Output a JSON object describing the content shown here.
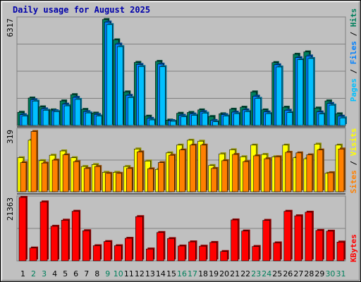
{
  "window": {
    "title": "Daily usage for August 2025"
  },
  "colors": {
    "hits": "#00805c",
    "files": "#0080ff",
    "pages": "#00c0ff",
    "visits": "#ffff00",
    "sites": "#ff8000",
    "kbytes": "#ff0000",
    "weekday": "#000000",
    "weekend": "#00805c",
    "background": "#c0c0c0"
  },
  "chart_data": [
    {
      "type": "bar",
      "title": "Daily usage for August 2025",
      "ylabel": "6317",
      "right_labels": [
        "Pages",
        "Files",
        "Hits"
      ],
      "right_separator": "/",
      "ylim": [
        0,
        6317
      ],
      "categories": [
        "1",
        "2",
        "3",
        "4",
        "5",
        "6",
        "7",
        "8",
        "9",
        "10",
        "11",
        "12",
        "13",
        "14",
        "15",
        "16",
        "17",
        "18",
        "19",
        "20",
        "21",
        "22",
        "23",
        "24",
        "25",
        "26",
        "27",
        "28",
        "29",
        "30",
        "31"
      ],
      "weekend": [
        false,
        true,
        true,
        false,
        false,
        false,
        false,
        false,
        true,
        true,
        false,
        false,
        false,
        false,
        false,
        true,
        true,
        false,
        false,
        false,
        false,
        false,
        true,
        true,
        false,
        false,
        false,
        false,
        false,
        true,
        true
      ],
      "series": [
        {
          "name": "Hits",
          "values": [
            780,
            1620,
            1100,
            920,
            1450,
            1820,
            950,
            730,
            6250,
            5050,
            1980,
            3720,
            550,
            3780,
            320,
            720,
            770,
            920,
            530,
            690,
            960,
            1080,
            1980,
            920,
            3710,
            1080,
            4200,
            4340,
            1030,
            1450,
            690
          ]
        },
        {
          "name": "Files",
          "values": [
            640,
            1520,
            980,
            870,
            1260,
            1660,
            820,
            650,
            6100,
            4800,
            1780,
            3600,
            420,
            3620,
            290,
            600,
            680,
            820,
            300,
            640,
            790,
            920,
            1730,
            800,
            3580,
            900,
            4000,
            4100,
            800,
            1300,
            550
          ]
        },
        {
          "name": "Pages",
          "values": [
            560,
            1440,
            900,
            820,
            1160,
            1540,
            740,
            560,
            5950,
            4650,
            1650,
            3480,
            330,
            3470,
            250,
            520,
            600,
            730,
            220,
            560,
            700,
            820,
            1600,
            700,
            3450,
            760,
            3880,
            3950,
            680,
            1200,
            450
          ]
        }
      ]
    },
    {
      "type": "bar",
      "ylabel": "319",
      "right_labels": [
        "Sites",
        "Visits"
      ],
      "right_separator": "/",
      "ylim": [
        0,
        319
      ],
      "categories": [
        "1",
        "2",
        "3",
        "4",
        "5",
        "6",
        "7",
        "8",
        "9",
        "10",
        "11",
        "12",
        "13",
        "14",
        "15",
        "16",
        "17",
        "18",
        "19",
        "20",
        "21",
        "22",
        "23",
        "24",
        "25",
        "26",
        "27",
        "28",
        "29",
        "30",
        "31"
      ],
      "series": [
        {
          "name": "Visits",
          "values": [
            175,
            265,
            160,
            188,
            210,
            175,
            130,
            140,
            100,
            100,
            130,
            220,
            158,
            115,
            200,
            240,
            265,
            260,
            135,
            195,
            216,
            180,
            240,
            192,
            180,
            240,
            175,
            170,
            245,
            95,
            240
          ]
        },
        {
          "name": "Sites",
          "values": [
            150,
            310,
            148,
            163,
            190,
            155,
            120,
            130,
            95,
            95,
            120,
            205,
            118,
            150,
            188,
            215,
            240,
            240,
            120,
            160,
            192,
            155,
            185,
            170,
            180,
            203,
            200,
            190,
            215,
            98,
            220
          ]
        }
      ]
    },
    {
      "type": "bar",
      "ylabel": "21363",
      "right_labels": [
        "KBytes"
      ],
      "ylim": [
        0,
        21363
      ],
      "categories": [
        "1",
        "2",
        "3",
        "4",
        "5",
        "6",
        "7",
        "8",
        "9",
        "10",
        "11",
        "12",
        "13",
        "14",
        "15",
        "16",
        "17",
        "18",
        "19",
        "20",
        "21",
        "22",
        "23",
        "24",
        "25",
        "26",
        "27",
        "28",
        "29",
        "30",
        "31"
      ],
      "series": [
        {
          "name": "KBytes",
          "values": [
            21363,
            4330,
            19850,
            11650,
            13700,
            16700,
            10150,
            5100,
            6500,
            5100,
            7600,
            14900,
            4000,
            9550,
            7500,
            5000,
            6400,
            4950,
            6200,
            3150,
            13780,
            10050,
            4850,
            13640,
            6060,
            16690,
            15170,
            16390,
            10250,
            10000,
            6330
          ]
        }
      ]
    }
  ]
}
